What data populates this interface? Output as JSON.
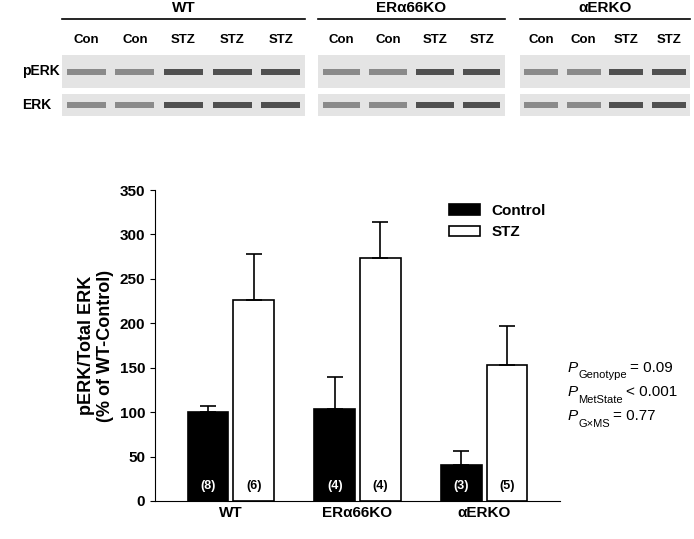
{
  "chart_data": {
    "type": "bar",
    "ylabel": "pERK/Total ERK\n(% of WT-Control)",
    "categories": [
      "WT",
      "ERα66KO",
      "αERKO"
    ],
    "series": [
      {
        "name": "Control",
        "color": "#000000",
        "values": [
          100,
          104,
          40
        ],
        "errors": [
          7,
          36,
          16
        ],
        "n_labels": [
          "(8)",
          "(4)",
          "(3)"
        ]
      },
      {
        "name": "STZ",
        "color": "#ffffff",
        "values": [
          226,
          273,
          153
        ],
        "errors": [
          52,
          41,
          44
        ],
        "n_labels": [
          "(6)",
          "(4)",
          "(5)"
        ]
      }
    ],
    "ylim": [
      0,
      350
    ],
    "yticks": [
      0,
      50,
      100,
      150,
      200,
      250,
      300,
      350
    ],
    "legend": "upper right",
    "grid": false,
    "stats": [
      {
        "symbol": "P",
        "subscript": "Genotype",
        "relation": "= 0.09"
      },
      {
        "symbol": "P",
        "subscript": "MetState",
        "relation": "< 0.001"
      },
      {
        "symbol": "P",
        "subscript": "G×MS",
        "relation": "= 0.77"
      }
    ],
    "blot": {
      "rows": [
        "pERK",
        "ERK"
      ],
      "groups": [
        {
          "name": "WT",
          "lanes": [
            "Con",
            "Con",
            "STZ",
            "STZ",
            "STZ"
          ]
        },
        {
          "name": "ERα66KO",
          "lanes": [
            "Con",
            "Con",
            "STZ",
            "STZ"
          ]
        },
        {
          "name": "αERKO",
          "lanes": [
            "Con",
            "Con",
            "STZ",
            "STZ"
          ]
        }
      ]
    }
  }
}
